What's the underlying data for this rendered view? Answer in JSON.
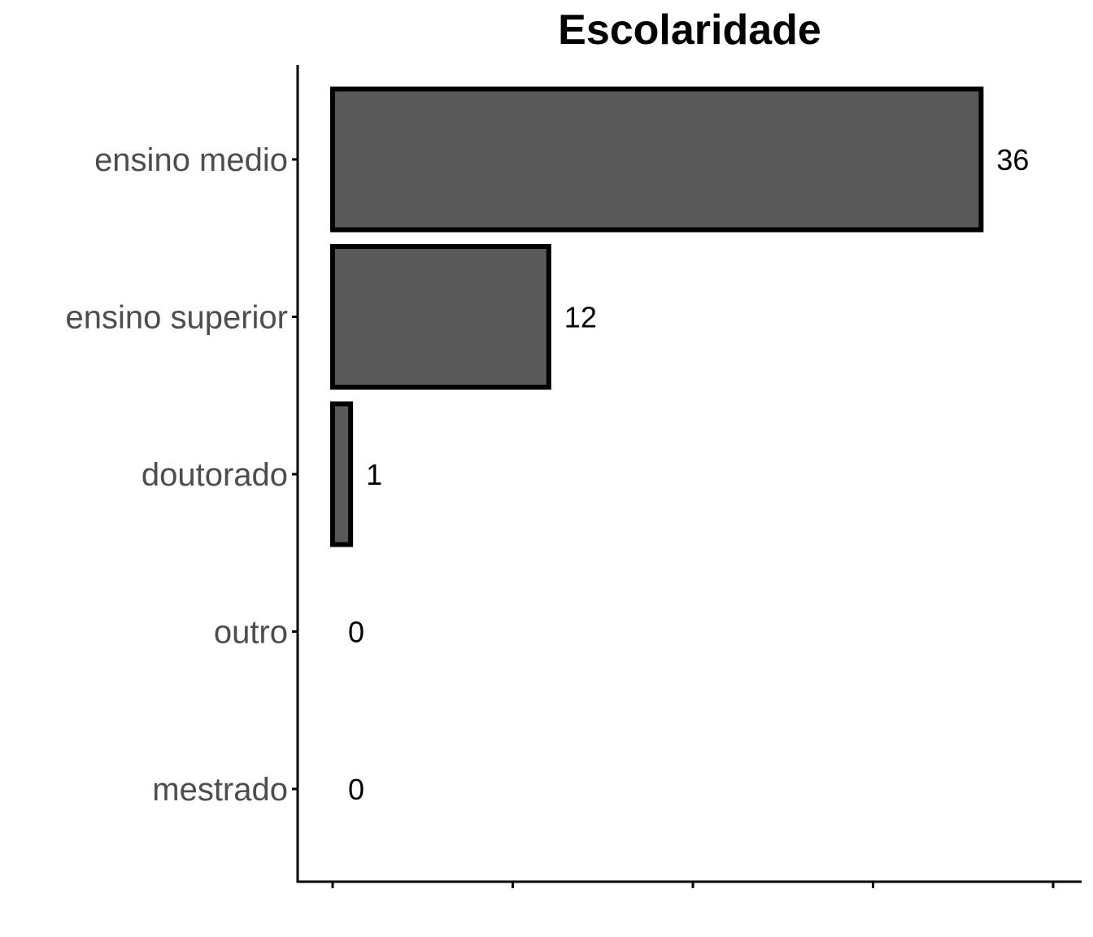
{
  "chart_data": {
    "type": "bar",
    "orientation": "horizontal",
    "title": "Escolaridade",
    "xlabel": "",
    "ylabel": "",
    "categories": [
      "ensino medio",
      "ensino superior",
      "doutorado",
      "outro",
      "mestrado"
    ],
    "values": [
      36,
      12,
      1,
      0,
      0
    ],
    "value_labels": [
      "36",
      "12",
      "1",
      "0",
      "0"
    ],
    "xlim": [
      0,
      40
    ],
    "x_ticks": [
      0,
      10,
      20,
      30,
      40
    ],
    "x_tick_labels_visible": false,
    "grid": false,
    "legend": "none",
    "colors": {
      "bar_fill": "#595959",
      "bar_stroke": "#000000",
      "axis": "#000000",
      "category_text": "#4d4d4d",
      "value_text": "#000000"
    }
  }
}
